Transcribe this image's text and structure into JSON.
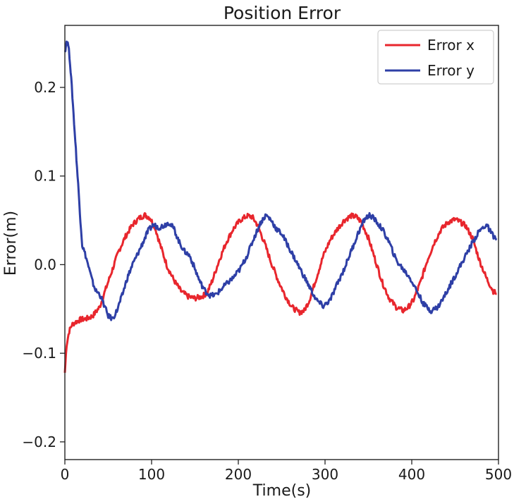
{
  "chart_data": {
    "type": "line",
    "title": "Position Error",
    "xlabel": "Time(s)",
    "ylabel": "Error(m)",
    "xlim": [
      0,
      500
    ],
    "ylim": [
      -0.22,
      0.27
    ],
    "xticks": [
      0,
      100,
      200,
      300,
      400,
      500
    ],
    "xtick_labels": [
      "0",
      "100",
      "200",
      "300",
      "400",
      "500"
    ],
    "yticks": [
      -0.2,
      -0.1,
      0.0,
      0.1,
      0.2
    ],
    "ytick_labels": [
      "−0.2",
      "−0.1",
      "0.0",
      "0.1",
      "0.2"
    ],
    "grid": false,
    "legend_position": "top-right",
    "series": [
      {
        "name": "Error x",
        "color": "#e8262d",
        "x": [
          0,
          2,
          5,
          8,
          12,
          18,
          25,
          32,
          40,
          48,
          55,
          62,
          70,
          78,
          85,
          92,
          98,
          104,
          110,
          118,
          126,
          134,
          142,
          150,
          158,
          164,
          170,
          178,
          186,
          194,
          202,
          210,
          216,
          222,
          230,
          238,
          246,
          254,
          262,
          270,
          276,
          282,
          290,
          298,
          306,
          314,
          322,
          330,
          336,
          342,
          350,
          358,
          366,
          374,
          382,
          390,
          396,
          402,
          410,
          418,
          426,
          434,
          442,
          450,
          456,
          462,
          470,
          478,
          486,
          494,
          498
        ],
        "y": [
          -0.122,
          -0.09,
          -0.075,
          -0.068,
          -0.065,
          -0.062,
          -0.061,
          -0.058,
          -0.048,
          -0.025,
          -0.005,
          0.015,
          0.032,
          0.045,
          0.052,
          0.056,
          0.053,
          0.042,
          0.022,
          -0.002,
          -0.018,
          -0.03,
          -0.036,
          -0.038,
          -0.036,
          -0.032,
          -0.018,
          0.005,
          0.025,
          0.04,
          0.05,
          0.055,
          0.054,
          0.045,
          0.025,
          0.002,
          -0.018,
          -0.035,
          -0.048,
          -0.054,
          -0.052,
          -0.04,
          -0.015,
          0.01,
          0.028,
          0.04,
          0.05,
          0.055,
          0.054,
          0.048,
          0.03,
          0.005,
          -0.02,
          -0.038,
          -0.048,
          -0.052,
          -0.048,
          -0.04,
          -0.02,
          0.005,
          0.025,
          0.04,
          0.048,
          0.051,
          0.048,
          0.044,
          0.03,
          0.005,
          -0.015,
          -0.03,
          -0.033
        ]
      },
      {
        "name": "Error y",
        "color": "#2e3fa6",
        "x": [
          0,
          2,
          4,
          6,
          8,
          10,
          12,
          14,
          16,
          18,
          20,
          24,
          28,
          32,
          36,
          40,
          45,
          50,
          55,
          60,
          66,
          72,
          78,
          84,
          90,
          96,
          102,
          108,
          114,
          120,
          126,
          132,
          138,
          144,
          150,
          156,
          162,
          168,
          174,
          180,
          186,
          194,
          202,
          210,
          218,
          226,
          232,
          238,
          244,
          250,
          258,
          266,
          274,
          282,
          290,
          298,
          306,
          314,
          322,
          330,
          338,
          346,
          352,
          358,
          366,
          374,
          382,
          390,
          398,
          406,
          414,
          422,
          430,
          438,
          446,
          454,
          462,
          470,
          478,
          486,
          492,
          498
        ],
        "y": [
          0.24,
          0.252,
          0.248,
          0.228,
          0.2,
          0.17,
          0.14,
          0.11,
          0.08,
          0.05,
          0.022,
          0.01,
          -0.005,
          -0.02,
          -0.03,
          -0.033,
          -0.045,
          -0.058,
          -0.061,
          -0.052,
          -0.035,
          -0.015,
          0.0,
          0.012,
          0.025,
          0.038,
          0.045,
          0.042,
          0.044,
          0.048,
          0.04,
          0.025,
          0.015,
          0.01,
          -0.005,
          -0.02,
          -0.03,
          -0.035,
          -0.034,
          -0.028,
          -0.022,
          -0.015,
          -0.005,
          0.01,
          0.03,
          0.048,
          0.056,
          0.05,
          0.04,
          0.035,
          0.02,
          0.005,
          -0.01,
          -0.025,
          -0.04,
          -0.047,
          -0.04,
          -0.022,
          -0.005,
          0.015,
          0.035,
          0.052,
          0.056,
          0.05,
          0.04,
          0.025,
          0.005,
          -0.005,
          -0.015,
          -0.03,
          -0.045,
          -0.052,
          -0.048,
          -0.035,
          -0.02,
          -0.005,
          0.01,
          0.025,
          0.038,
          0.045,
          0.035,
          0.028
        ]
      }
    ]
  }
}
